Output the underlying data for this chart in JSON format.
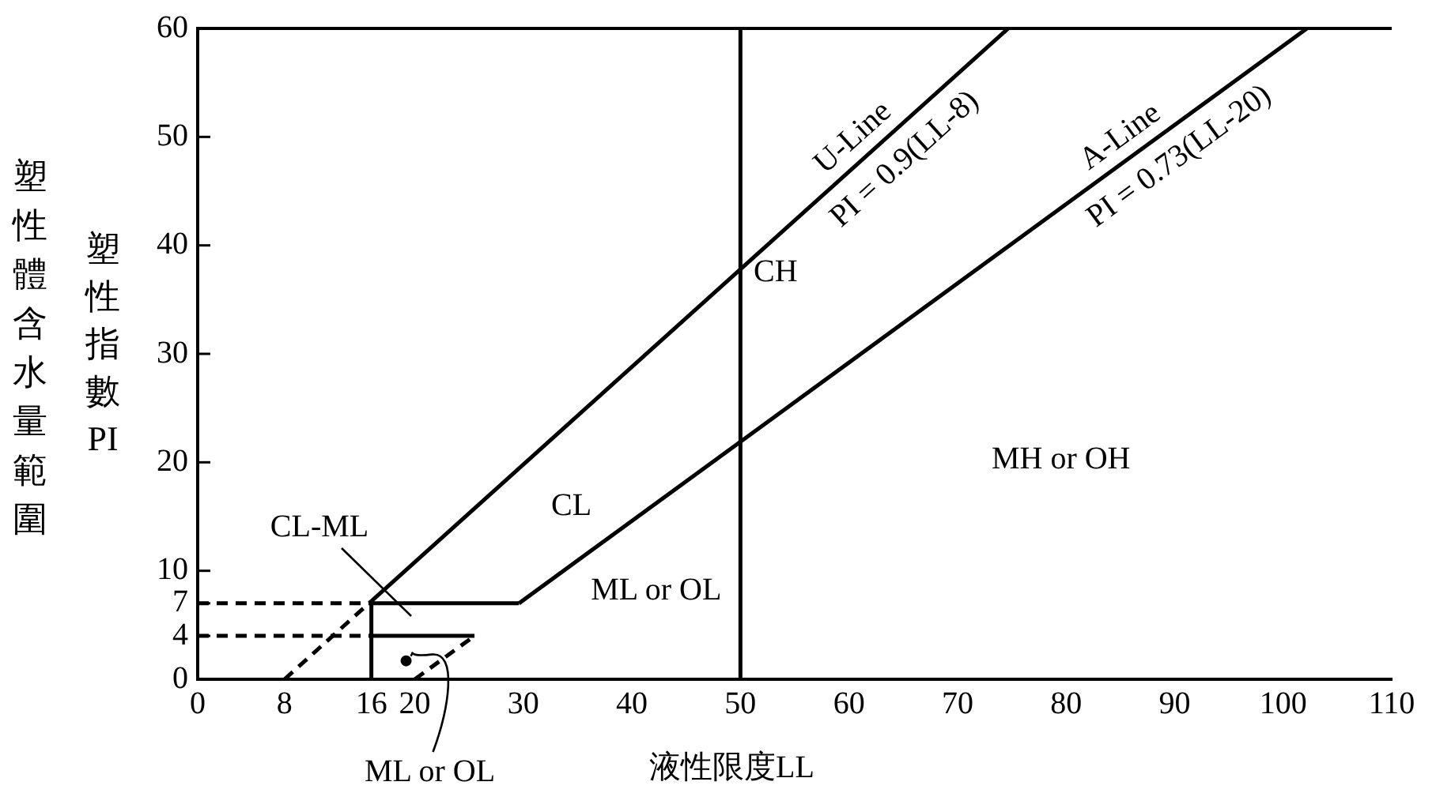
{
  "chart_data": {
    "type": "line",
    "xlabel": "液性限度LL",
    "ylabel": "塑性指數PI",
    "marker": "none",
    "xlim": [
      0,
      110
    ],
    "xticks": [
      0,
      8,
      16,
      20,
      30,
      40,
      50,
      60,
      70,
      80,
      90,
      100,
      110
    ],
    "ylim": [
      0,
      60
    ],
    "yticks": [
      0,
      4,
      7,
      10,
      20,
      30,
      40,
      50,
      60
    ],
    "series": [
      {
        "name": "U-Line",
        "color": "#000000",
        "x": [
          16,
          74.67
        ],
        "values": [
          7.2,
          60
        ]
      },
      {
        "color": "#000000",
        "line_style": "dashed",
        "x": [
          8,
          16
        ],
        "values": [
          0,
          7.2
        ]
      },
      {
        "name": "A-Line",
        "color": "#000000",
        "x": [
          29.6,
          102.19
        ],
        "values": [
          7,
          60
        ]
      },
      {
        "color": "#000000",
        "line_style": "dashed",
        "x": [
          20,
          25.5
        ],
        "values": [
          0,
          4
        ]
      },
      {
        "color": "#000000",
        "x": [
          16,
          16
        ],
        "values": [
          0,
          7.2
        ]
      },
      {
        "color": "#000000",
        "line_style": "dashed",
        "x": [
          0,
          16
        ],
        "values": [
          7,
          7
        ]
      },
      {
        "color": "#000000",
        "line_style": "dashed",
        "x": [
          0,
          16
        ],
        "values": [
          4,
          4
        ]
      },
      {
        "color": "#000000",
        "x": [
          16,
          29.6
        ],
        "values": [
          7,
          7
        ]
      },
      {
        "color": "#000000",
        "x": [
          16,
          25.5
        ],
        "values": [
          4,
          4
        ]
      }
    ],
    "ref_lines": [
      {
        "axis": "x",
        "value": 50
      }
    ],
    "annotations": [
      "塑性體含水量範圍",
      {
        "text": "PI = 0.9(LL-8)",
        "x": 63.4,
        "y": 49.86
      },
      {
        "text": "PI = 0.73(LL-20)",
        "x": 88.9,
        "y": 50.297
      },
      "CH",
      "MH or OH",
      "CL",
      "CL-ML",
      "ML or OL",
      {
        "text": "ML or OL",
        "x": 19.2,
        "y": 1.7
      }
    ]
  }
}
